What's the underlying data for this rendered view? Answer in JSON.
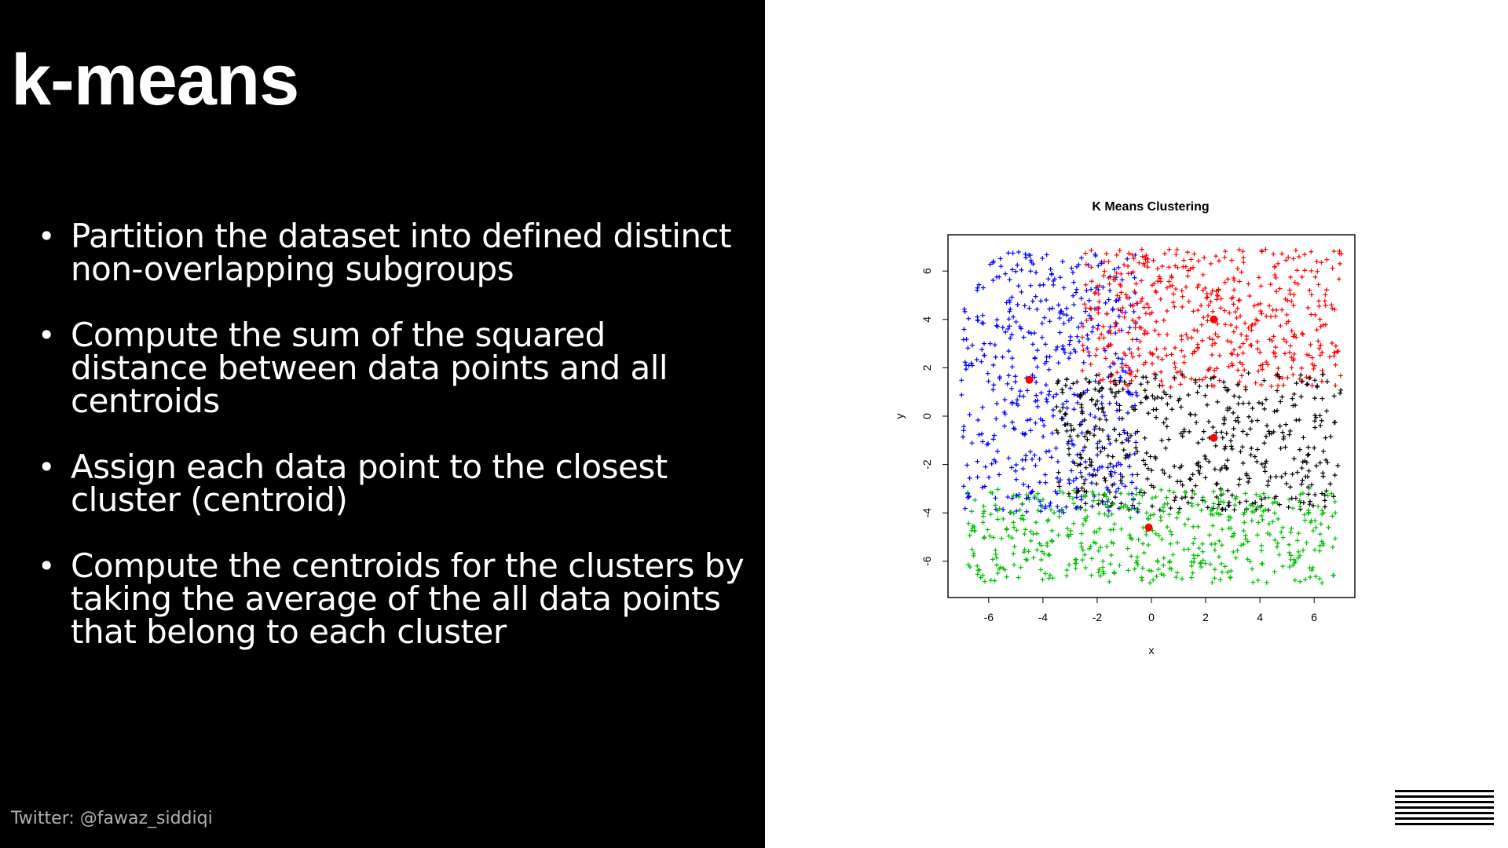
{
  "slide": {
    "title": "k-means",
    "bullets": [
      "Partition the dataset into defined distinct non-overlapping subgroups",
      "Compute the sum of the squared distance between data points and all centroids",
      "Assign each data point to the closest cluster (centroid)",
      "Compute the centroids for the clusters by taking the average of the all data points that belong to each cluster"
    ],
    "footer": "Twitter: @fawaz_siddiqi",
    "logo_text": "IBM"
  },
  "chart_data": {
    "type": "scatter",
    "title": "K Means Clustering",
    "xlabel": "x",
    "ylabel": "y",
    "xlim": [
      -7.5,
      7.5
    ],
    "ylim": [
      -7.5,
      7.5
    ],
    "xticks": [
      -6,
      -4,
      -2,
      0,
      2,
      4,
      6
    ],
    "yticks": [
      -6,
      -4,
      -2,
      0,
      2,
      4,
      6
    ],
    "grid": false,
    "marker": "+",
    "series": [
      {
        "color": "#0000ff",
        "x_range": [
          -7.0,
          -0.5
        ],
        "y_range": [
          -4.0,
          6.8
        ],
        "count": 520
      },
      {
        "color": "#ff0000",
        "x_range": [
          -2.6,
          7.0
        ],
        "y_range": [
          1.2,
          6.9
        ],
        "count": 520
      },
      {
        "color": "#000000",
        "x_range": [
          -3.5,
          7.0
        ],
        "y_range": [
          -3.9,
          1.8
        ],
        "count": 480
      },
      {
        "color": "#00c000",
        "x_range": [
          -6.8,
          6.8
        ],
        "y_range": [
          -6.9,
          -3.0
        ],
        "count": 500
      }
    ],
    "centroids": [
      {
        "x": -4.5,
        "y": 1.5,
        "color": "#ff0000"
      },
      {
        "x": 2.3,
        "y": 4.0,
        "color": "#ff0000"
      },
      {
        "x": 2.3,
        "y": -0.9,
        "color": "#ff0000"
      },
      {
        "x": -0.1,
        "y": -4.6,
        "color": "#ff0000"
      }
    ]
  }
}
